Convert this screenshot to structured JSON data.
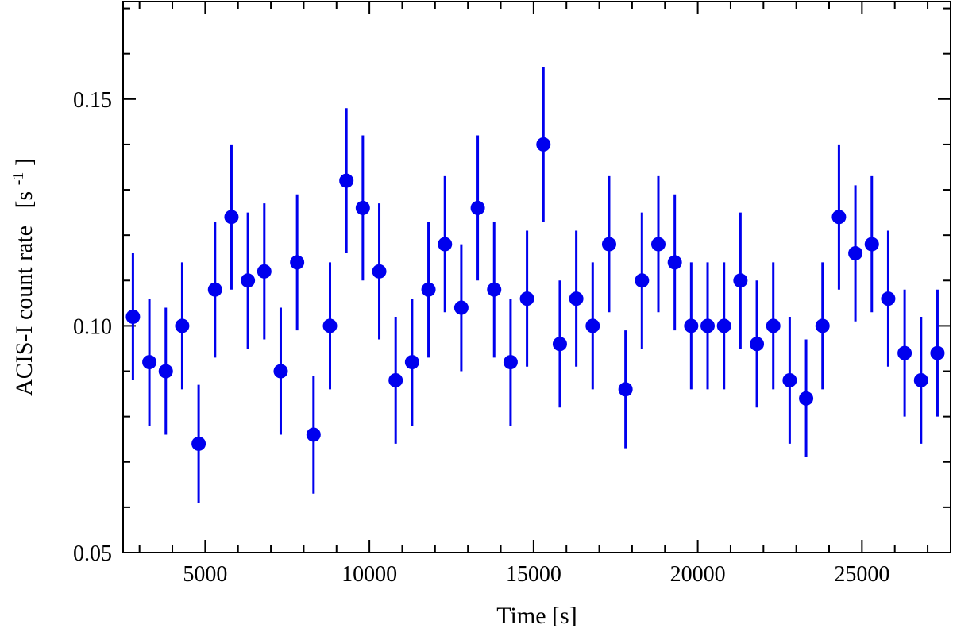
{
  "chart_data": {
    "type": "scatter",
    "title": "",
    "xlabel": "Time [s]",
    "ylabel": "ACIS-I count rate",
    "ylabel_unit_base": "[s",
    "ylabel_unit_exp": "-1",
    "ylabel_unit_close": "]",
    "xlim": [
      2500,
      27700
    ],
    "ylim": [
      0.05,
      0.1715
    ],
    "xticks_major": [
      5000,
      10000,
      15000,
      20000,
      25000
    ],
    "xtick_labels": [
      "5000",
      "10000",
      "15000",
      "20000",
      "25000"
    ],
    "yticks_major": [
      0.05,
      0.1,
      0.15
    ],
    "ytick_labels": [
      "0.05",
      "0.10",
      "0.15"
    ],
    "grid": false,
    "colors": {
      "points": "#0000ee",
      "axes": "#000000"
    },
    "series": [
      {
        "x": [
          2800,
          3300,
          3800,
          4300,
          4800,
          5300,
          5800,
          6300,
          6800,
          7300,
          7800,
          8300,
          8800,
          9300,
          9800,
          10300,
          10800,
          11300,
          11800,
          12300,
          12800,
          13300,
          13800,
          14300,
          14800,
          15300,
          15800,
          16300,
          16800,
          17300,
          17800,
          18300,
          18800,
          19300,
          19800,
          20300,
          20800,
          21300,
          21800,
          22300,
          22800,
          23300,
          23800,
          24300,
          24800,
          25300,
          25800,
          26300,
          26800,
          27300
        ],
        "y": [
          0.102,
          0.092,
          0.09,
          0.1,
          0.074,
          0.108,
          0.124,
          0.11,
          0.112,
          0.09,
          0.114,
          0.076,
          0.1,
          0.132,
          0.126,
          0.112,
          0.088,
          0.092,
          0.108,
          0.118,
          0.104,
          0.126,
          0.108,
          0.092,
          0.106,
          0.14,
          0.096,
          0.106,
          0.1,
          0.118,
          0.086,
          0.11,
          0.118,
          0.114,
          0.1,
          0.1,
          0.1,
          0.11,
          0.096,
          0.1,
          0.088,
          0.084,
          0.1,
          0.124,
          0.116,
          0.118,
          0.106,
          0.094,
          0.088,
          0.094
        ],
        "yerr": [
          0.014,
          0.014,
          0.014,
          0.014,
          0.013,
          0.015,
          0.016,
          0.015,
          0.015,
          0.014,
          0.015,
          0.013,
          0.014,
          0.016,
          0.016,
          0.015,
          0.014,
          0.014,
          0.015,
          0.015,
          0.014,
          0.016,
          0.015,
          0.014,
          0.015,
          0.017,
          0.014,
          0.015,
          0.014,
          0.015,
          0.013,
          0.015,
          0.015,
          0.015,
          0.014,
          0.014,
          0.014,
          0.015,
          0.014,
          0.014,
          0.014,
          0.013,
          0.014,
          0.016,
          0.015,
          0.015,
          0.015,
          0.014,
          0.014,
          0.014
        ]
      }
    ]
  }
}
